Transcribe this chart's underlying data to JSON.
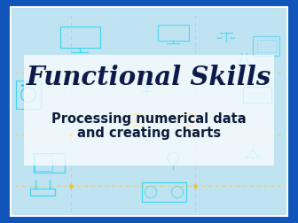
{
  "title_line1": "Functional Skills",
  "subtitle_line1": "Processing numerical data",
  "subtitle_line2": "and creating charts",
  "bg_outer_color": "#1155bb",
  "bg_inner_color": "#b8dff0",
  "title_color": "#0d1b4b",
  "subtitle_color": "#0d1b3e",
  "dashed_border_color": "#f0c030",
  "white_box_color": "#cce8f8",
  "figsize": [
    3.36,
    2.52
  ],
  "dpi": 100
}
